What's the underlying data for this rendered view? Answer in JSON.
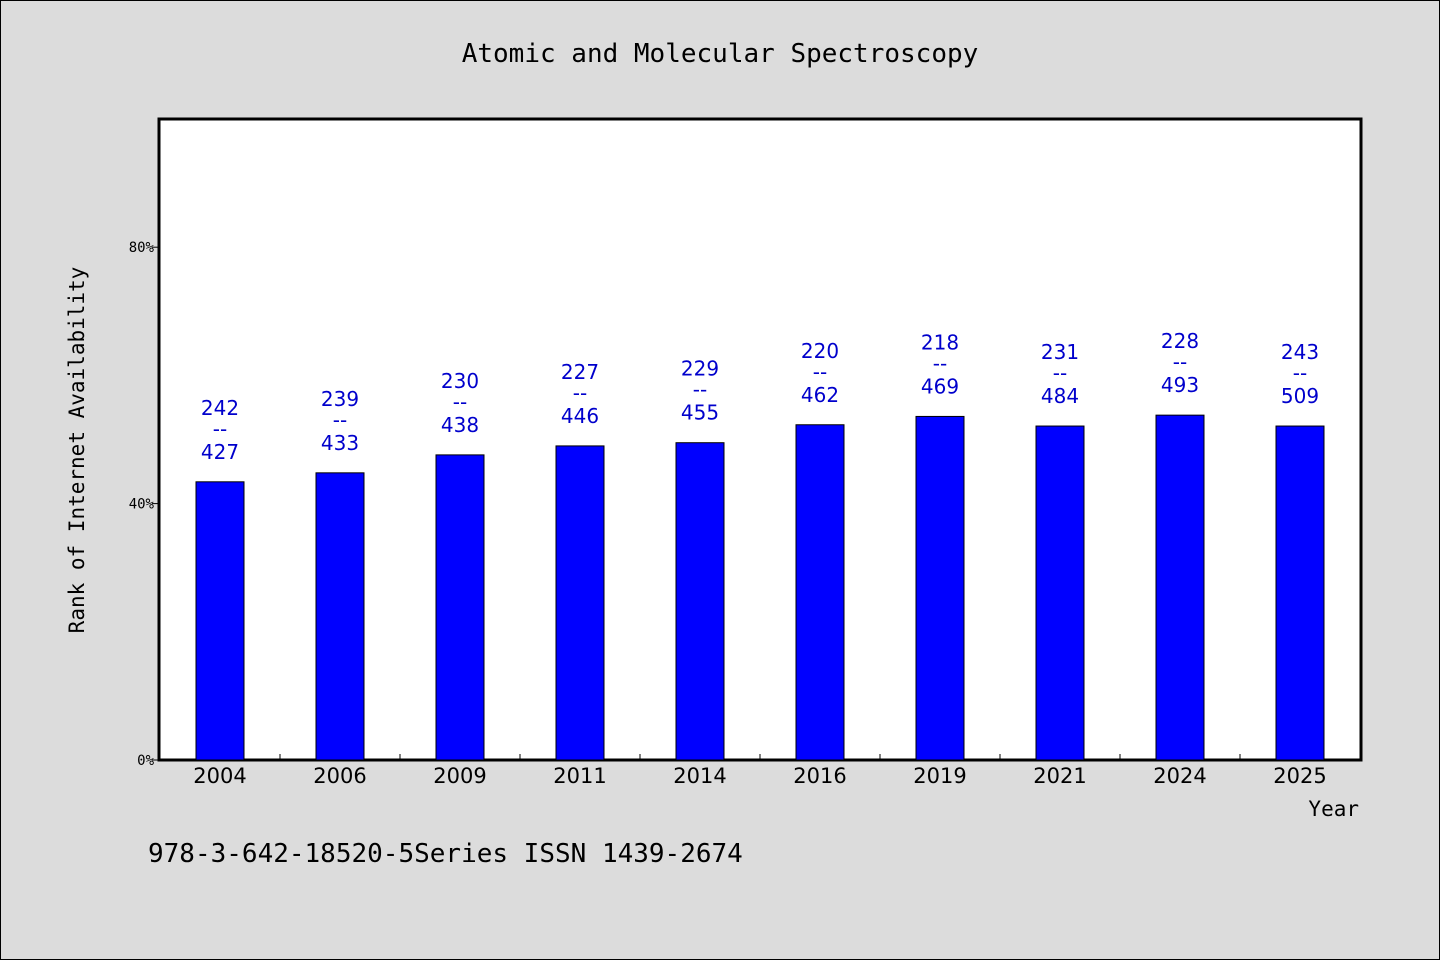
{
  "chart_data": {
    "type": "bar",
    "title": "Atomic and Molecular Spectroscopy",
    "xlabel": "Year",
    "ylabel": "Rank of Internet Availability",
    "categories": [
      "2004",
      "2006",
      "2009",
      "2011",
      "2014",
      "2016",
      "2019",
      "2021",
      "2024",
      "2025"
    ],
    "values": [
      43.4,
      44.8,
      47.6,
      49.0,
      49.5,
      52.3,
      53.6,
      52.1,
      53.8,
      52.1
    ],
    "ylim": [
      0,
      100
    ],
    "yticks": [
      0,
      40,
      80
    ],
    "ytick_labels": [
      "0%",
      "40%",
      "80%"
    ],
    "data_labels": [
      {
        "top": "242",
        "mid": "--",
        "bottom": "427"
      },
      {
        "top": "239",
        "mid": "--",
        "bottom": "433"
      },
      {
        "top": "230",
        "mid": "--",
        "bottom": "438"
      },
      {
        "top": "227",
        "mid": "--",
        "bottom": "446"
      },
      {
        "top": "229",
        "mid": "--",
        "bottom": "455"
      },
      {
        "top": "220",
        "mid": "--",
        "bottom": "462"
      },
      {
        "top": "218",
        "mid": "--",
        "bottom": "469"
      },
      {
        "top": "231",
        "mid": "--",
        "bottom": "484"
      },
      {
        "top": "228",
        "mid": "--",
        "bottom": "493"
      },
      {
        "top": "243",
        "mid": "--",
        "bottom": "509"
      }
    ],
    "bar_color": "#0000ff",
    "label_color": "#0000cc",
    "grid": false
  },
  "footer": "978-3-642-18520-5Series ISSN 1439-2674"
}
